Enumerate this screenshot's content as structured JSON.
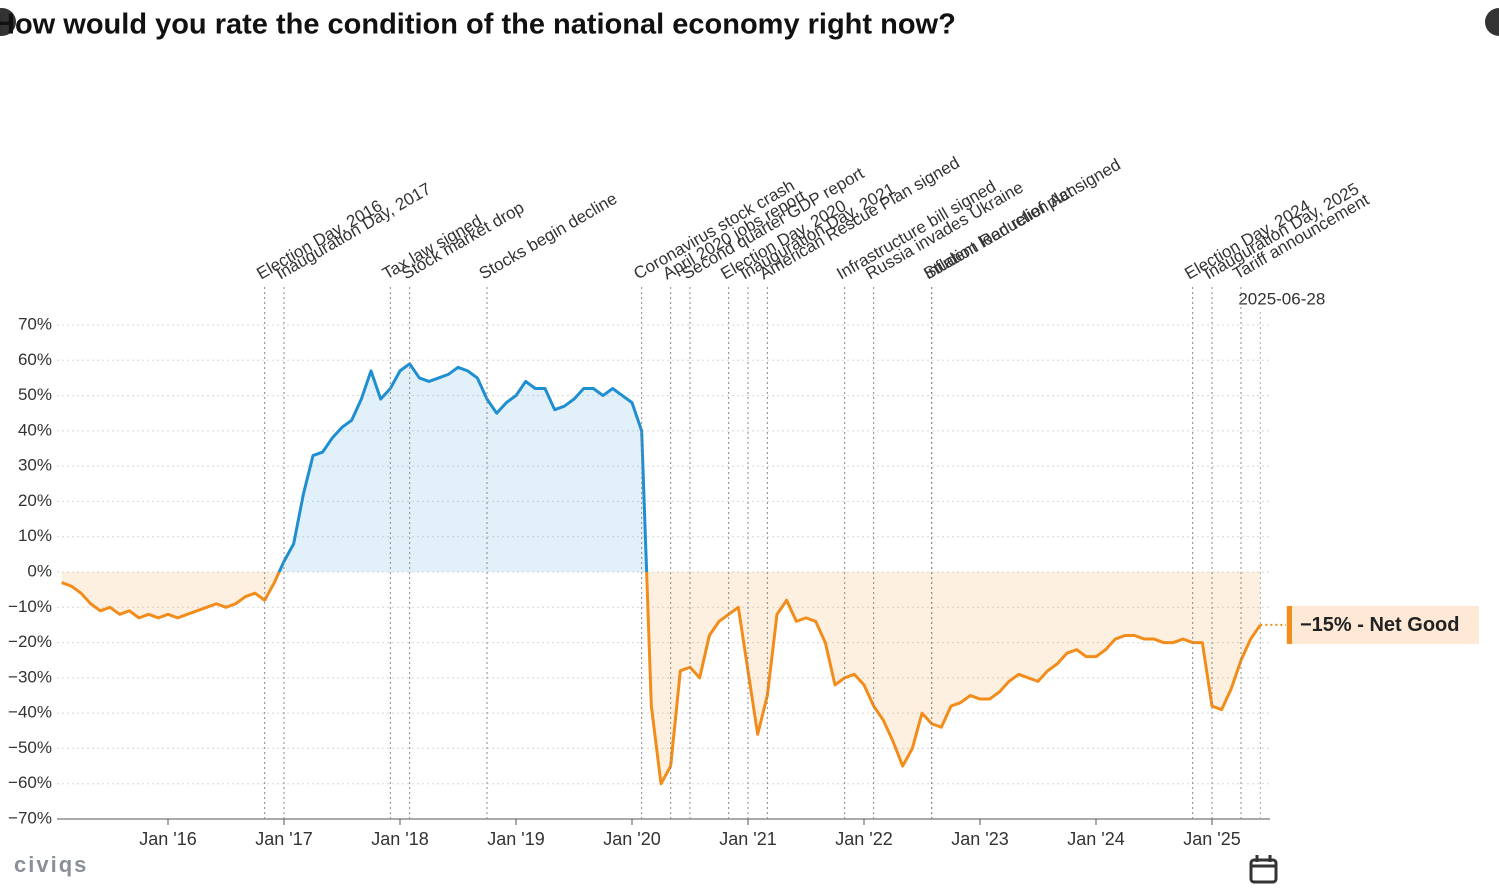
{
  "chart_data": {
    "type": "line",
    "title": "How would you rate the condition of the national economy right now?",
    "x": [
      "2015-02",
      "2015-03",
      "2015-04",
      "2015-05",
      "2015-06",
      "2015-07",
      "2015-08",
      "2015-09",
      "2015-10",
      "2015-11",
      "2015-12",
      "2016-01",
      "2016-02",
      "2016-03",
      "2016-04",
      "2016-05",
      "2016-06",
      "2016-07",
      "2016-08",
      "2016-09",
      "2016-10",
      "2016-11",
      "2016-12",
      "2017-01",
      "2017-02",
      "2017-03",
      "2017-04",
      "2017-05",
      "2017-06",
      "2017-07",
      "2017-08",
      "2017-09",
      "2017-10",
      "2017-11",
      "2017-12",
      "2018-01",
      "2018-02",
      "2018-03",
      "2018-04",
      "2018-05",
      "2018-06",
      "2018-07",
      "2018-08",
      "2018-09",
      "2018-10",
      "2018-11",
      "2018-12",
      "2019-01",
      "2019-02",
      "2019-03",
      "2019-04",
      "2019-05",
      "2019-06",
      "2019-07",
      "2019-08",
      "2019-09",
      "2019-10",
      "2019-11",
      "2019-12",
      "2020-01",
      "2020-02",
      "2020-03",
      "2020-04",
      "2020-05",
      "2020-06",
      "2020-07",
      "2020-08",
      "2020-09",
      "2020-10",
      "2020-11",
      "2020-12",
      "2021-01",
      "2021-02",
      "2021-03",
      "2021-04",
      "2021-05",
      "2021-06",
      "2021-07",
      "2021-08",
      "2021-09",
      "2021-10",
      "2021-11",
      "2021-12",
      "2022-01",
      "2022-02",
      "2022-03",
      "2022-04",
      "2022-05",
      "2022-06",
      "2022-07",
      "2022-08",
      "2022-09",
      "2022-10",
      "2022-11",
      "2022-12",
      "2023-01",
      "2023-02",
      "2023-03",
      "2023-04",
      "2023-05",
      "2023-06",
      "2023-07",
      "2023-08",
      "2023-09",
      "2023-10",
      "2023-11",
      "2023-12",
      "2024-01",
      "2024-02",
      "2024-03",
      "2024-04",
      "2024-05",
      "2024-06",
      "2024-07",
      "2024-08",
      "2024-09",
      "2024-10",
      "2024-11",
      "2024-12",
      "2025-01",
      "2025-02",
      "2025-03",
      "2025-04",
      "2025-05",
      "2025-06"
    ],
    "series": [
      {
        "name": "Net Good",
        "values": [
          -3,
          -4,
          -6,
          -9,
          -11,
          -10,
          -12,
          -11,
          -13,
          -12,
          -13,
          -12,
          -13,
          -12,
          -11,
          -10,
          -9,
          -10,
          -9,
          -7,
          -6,
          -8,
          -3,
          3,
          8,
          22,
          33,
          34,
          38,
          41,
          43,
          49,
          57,
          49,
          52,
          57,
          59,
          55,
          54,
          55,
          56,
          58,
          57,
          55,
          49,
          45,
          48,
          50,
          54,
          52,
          52,
          46,
          47,
          49,
          52,
          52,
          50,
          52,
          50,
          48,
          40,
          -38,
          -60,
          -55,
          -28,
          -27,
          -30,
          -18,
          -14,
          -12,
          -10,
          -28,
          -46,
          -35,
          -12,
          -8,
          -14,
          -13,
          -14,
          -20,
          -32,
          -30,
          -29,
          -32,
          -38,
          -42,
          -48,
          -55,
          -50,
          -40,
          -43,
          -44,
          -38,
          -37,
          -35,
          -36,
          -36,
          -34,
          -31,
          -29,
          -30,
          -31,
          -28,
          -26,
          -23,
          -22,
          -24,
          -24,
          -22,
          -19,
          -18,
          -18,
          -19,
          -19,
          -20,
          -20,
          -19,
          -20,
          -20,
          -38,
          -39,
          -33,
          -25,
          -19,
          -15
        ]
      }
    ],
    "positive_color": "#1f8fd1",
    "negative_color": "#f28c1a",
    "xlim": [
      "2015-01",
      "2025-07"
    ],
    "xticks": [
      {
        "value": "2016-01",
        "label": "Jan '16"
      },
      {
        "value": "2017-01",
        "label": "Jan '17"
      },
      {
        "value": "2018-01",
        "label": "Jan '18"
      },
      {
        "value": "2019-01",
        "label": "Jan '19"
      },
      {
        "value": "2020-01",
        "label": "Jan '20"
      },
      {
        "value": "2021-01",
        "label": "Jan '21"
      },
      {
        "value": "2022-01",
        "label": "Jan '22"
      },
      {
        "value": "2023-01",
        "label": "Jan '23"
      },
      {
        "value": "2024-01",
        "label": "Jan '24"
      },
      {
        "value": "2025-01",
        "label": "Jan '25"
      }
    ],
    "ylim": [
      -70,
      70
    ],
    "yticks": [
      {
        "value": 70,
        "label": "70%"
      },
      {
        "value": 60,
        "label": "60%"
      },
      {
        "value": 50,
        "label": "50%"
      },
      {
        "value": 40,
        "label": "40%"
      },
      {
        "value": 30,
        "label": "30%"
      },
      {
        "value": 20,
        "label": "20%"
      },
      {
        "value": 10,
        "label": "10%"
      },
      {
        "value": 0,
        "label": "0%"
      },
      {
        "value": -10,
        "label": "−10%"
      },
      {
        "value": -20,
        "label": "−20%"
      },
      {
        "value": -30,
        "label": "−30%"
      },
      {
        "value": -40,
        "label": "−40%"
      },
      {
        "value": -50,
        "label": "−50%"
      },
      {
        "value": -60,
        "label": "−60%"
      },
      {
        "value": -70,
        "label": "−70%"
      }
    ],
    "grid": true,
    "events": [
      {
        "label": "Election Day, 2016",
        "x": "2016-11"
      },
      {
        "label": "Inauguration Day, 2017",
        "x": "2017-01"
      },
      {
        "label": "Tax law signed",
        "x": "2017-12"
      },
      {
        "label": "Stock market drop",
        "x": "2018-02"
      },
      {
        "label": "Stocks begin decline",
        "x": "2018-10"
      },
      {
        "label": "Coronavirus stock crash",
        "x": "2020-02"
      },
      {
        "label": "April 2020 jobs report",
        "x": "2020-05"
      },
      {
        "label": "Second quarter GDP report",
        "x": "2020-07"
      },
      {
        "label": "Election Day, 2020",
        "x": "2020-11"
      },
      {
        "label": "Inauguration Day, 2021",
        "x": "2021-01"
      },
      {
        "label": "American Rescue Plan signed",
        "x": "2021-03"
      },
      {
        "label": "Infrastructure bill signed",
        "x": "2021-11"
      },
      {
        "label": "Russia invades Ukraine",
        "x": "2022-02"
      },
      {
        "label": "Inflation Reduction Act signed",
        "x": "2022-08"
      },
      {
        "label": "Student loan relief plan",
        "x": "2022-08"
      },
      {
        "label": "Election Day, 2024",
        "x": "2024-11"
      },
      {
        "label": "Inauguration Day, 2025",
        "x": "2025-01"
      },
      {
        "label": "Tariff announcement",
        "x": "2025-04"
      }
    ],
    "date_label": "2025-06-28",
    "end_label": "−15% - Net Good",
    "logo": "civiqs"
  }
}
